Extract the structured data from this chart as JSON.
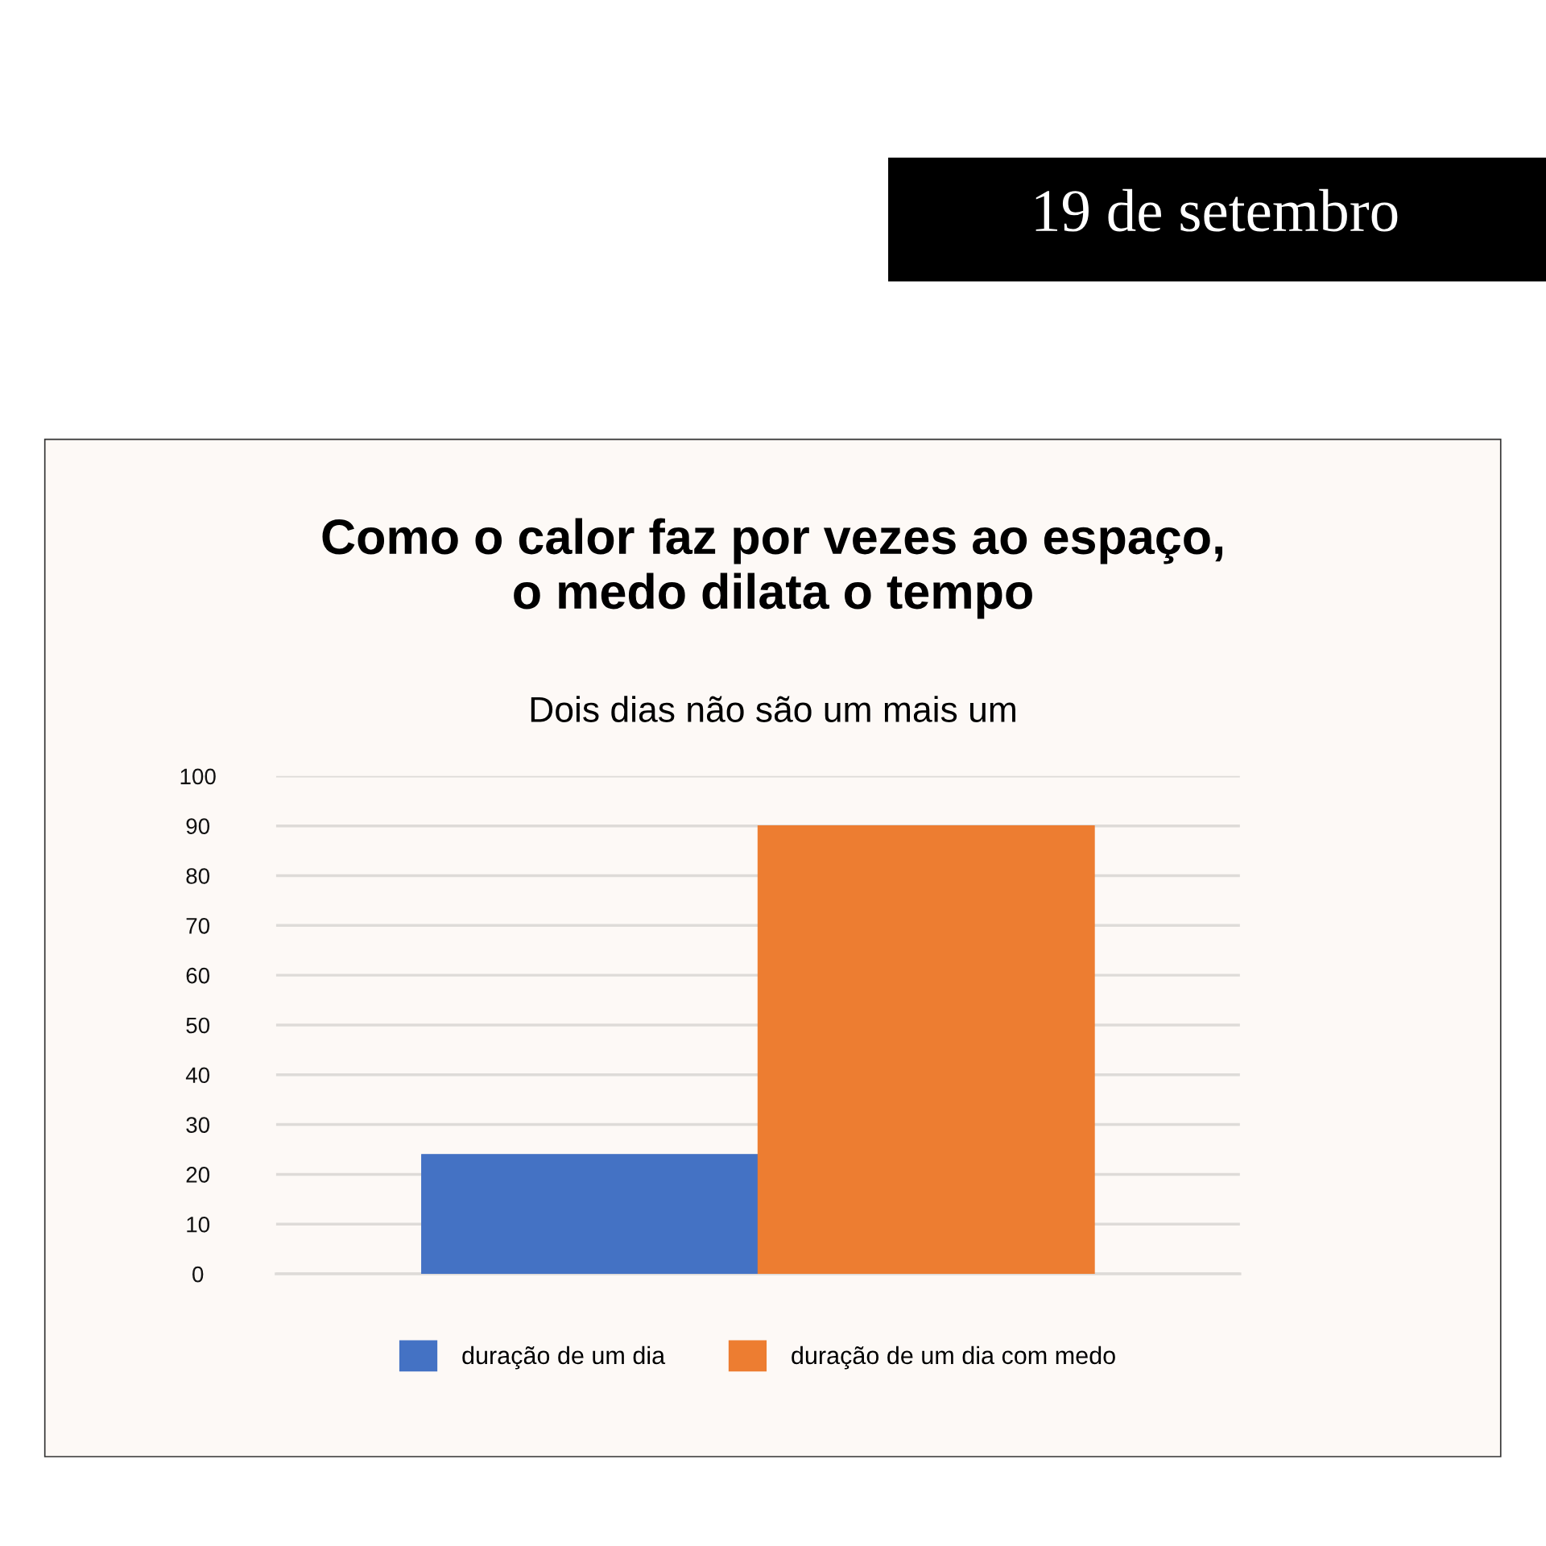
{
  "chart_data": {
    "type": "bar",
    "title": "Como o calor faz por vezes ao espaço,\no medo dilata o tempo",
    "subtitle": "Dois dias não são um mais um",
    "annotations": [
      "19 de setembro"
    ],
    "categories": [
      null
    ],
    "series": [
      {
        "name": "duração de um dia",
        "color": "#4472c4",
        "values": [
          24
        ]
      },
      {
        "name": "duração de um dia com medo",
        "color": "#ed7d31",
        "values": [
          90
        ]
      }
    ],
    "ylim": [
      0,
      100
    ],
    "yticks": [
      0,
      10,
      20,
      30,
      40,
      50,
      60,
      70,
      80,
      90,
      100
    ],
    "grid": "y",
    "legend": "bottom"
  }
}
